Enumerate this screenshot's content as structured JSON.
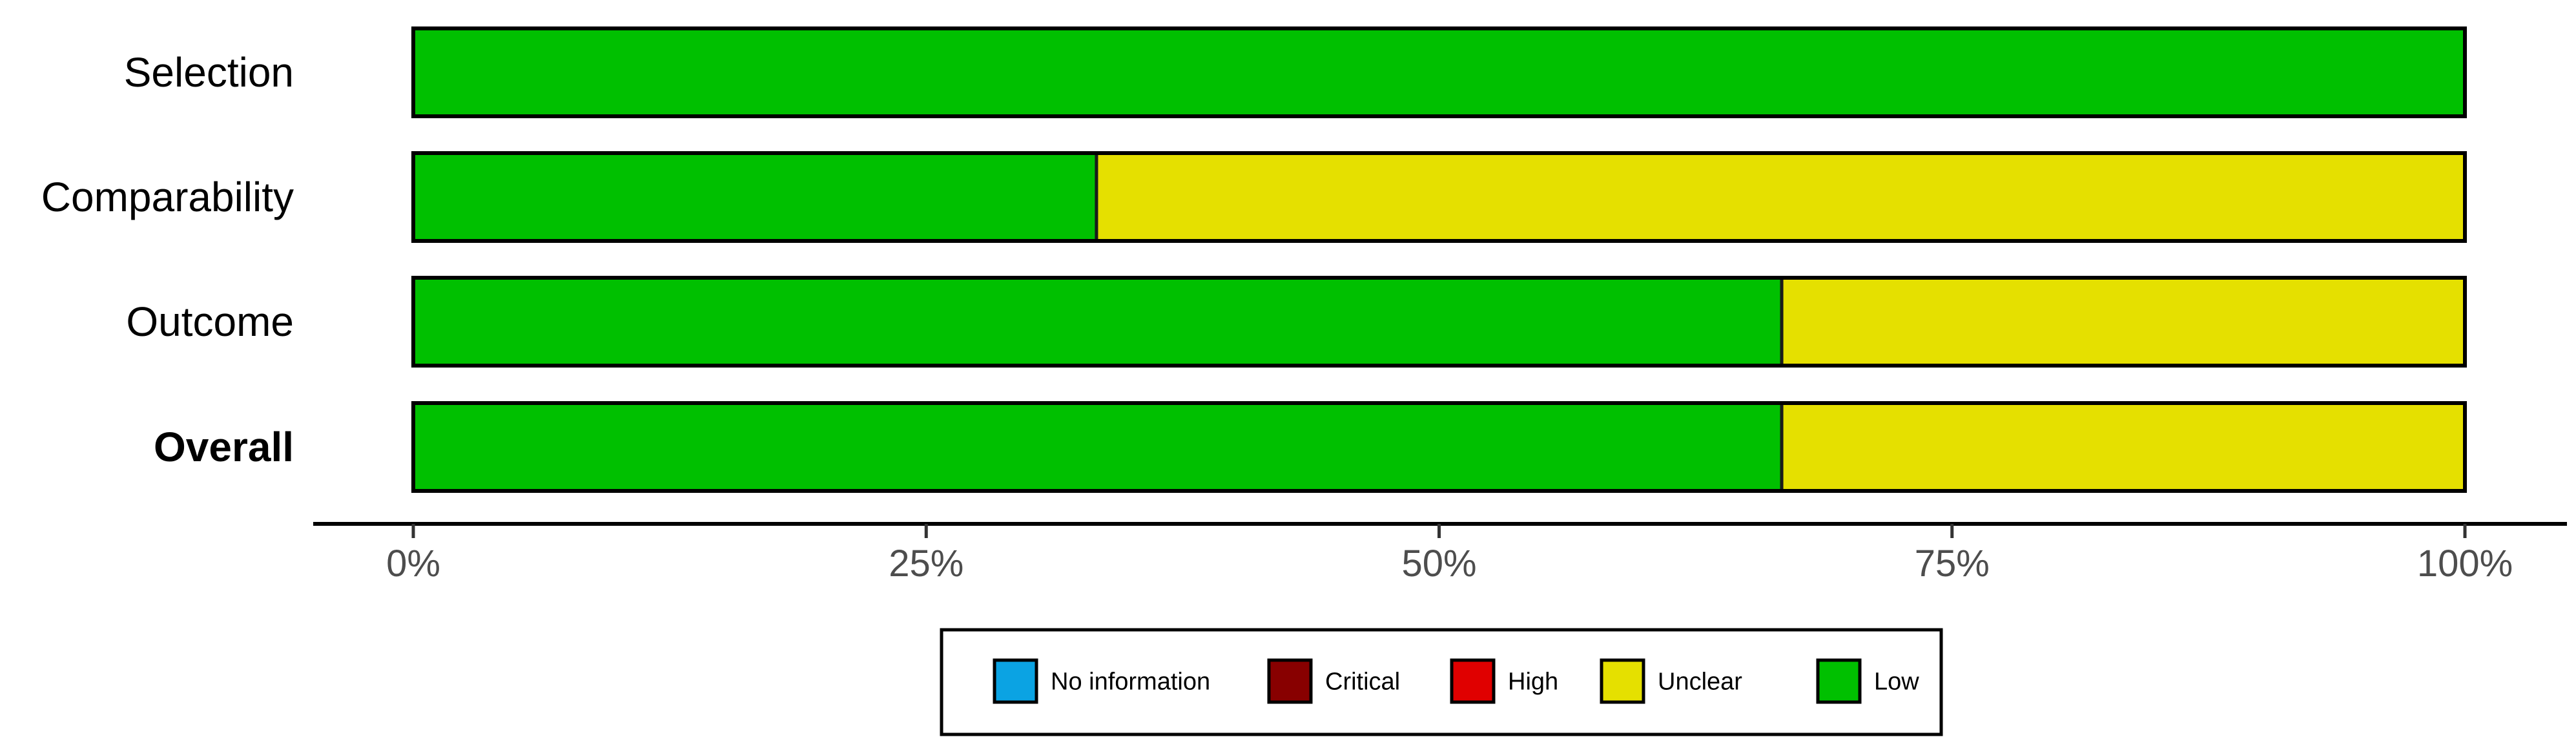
{
  "chart_data": {
    "type": "bar",
    "orientation": "horizontal",
    "stacked": true,
    "categories": [
      "Selection",
      "Comparability",
      "Outcome",
      "Overall"
    ],
    "category_bold": [
      false,
      false,
      false,
      true
    ],
    "series": [
      {
        "name": "Low",
        "color": "#00c000",
        "values": [
          100,
          33.3,
          66.7,
          66.7
        ]
      },
      {
        "name": "Unclear",
        "color": "#e5e000",
        "values": [
          0,
          66.7,
          33.3,
          33.3
        ]
      },
      {
        "name": "High",
        "color": "#e00000",
        "values": [
          0,
          0,
          0,
          0
        ]
      },
      {
        "name": "Critical",
        "color": "#880000",
        "values": [
          0,
          0,
          0,
          0
        ]
      },
      {
        "name": "No information",
        "color": "#0ba3e3",
        "values": [
          0,
          0,
          0,
          0
        ]
      }
    ],
    "x_ticks": [
      "0%",
      "25%",
      "50%",
      "75%",
      "100%"
    ],
    "x_tick_values": [
      0,
      25,
      50,
      75,
      100
    ],
    "xlim": [
      0,
      100
    ],
    "grid": false,
    "legend": {
      "position": "bottom",
      "entries": [
        {
          "label": "No information",
          "color": "#0ba3e3"
        },
        {
          "label": "Critical",
          "color": "#880000"
        },
        {
          "label": "High",
          "color": "#e00000"
        },
        {
          "label": "Unclear",
          "color": "#e5e000"
        },
        {
          "label": "Low",
          "color": "#00c000"
        }
      ]
    }
  }
}
